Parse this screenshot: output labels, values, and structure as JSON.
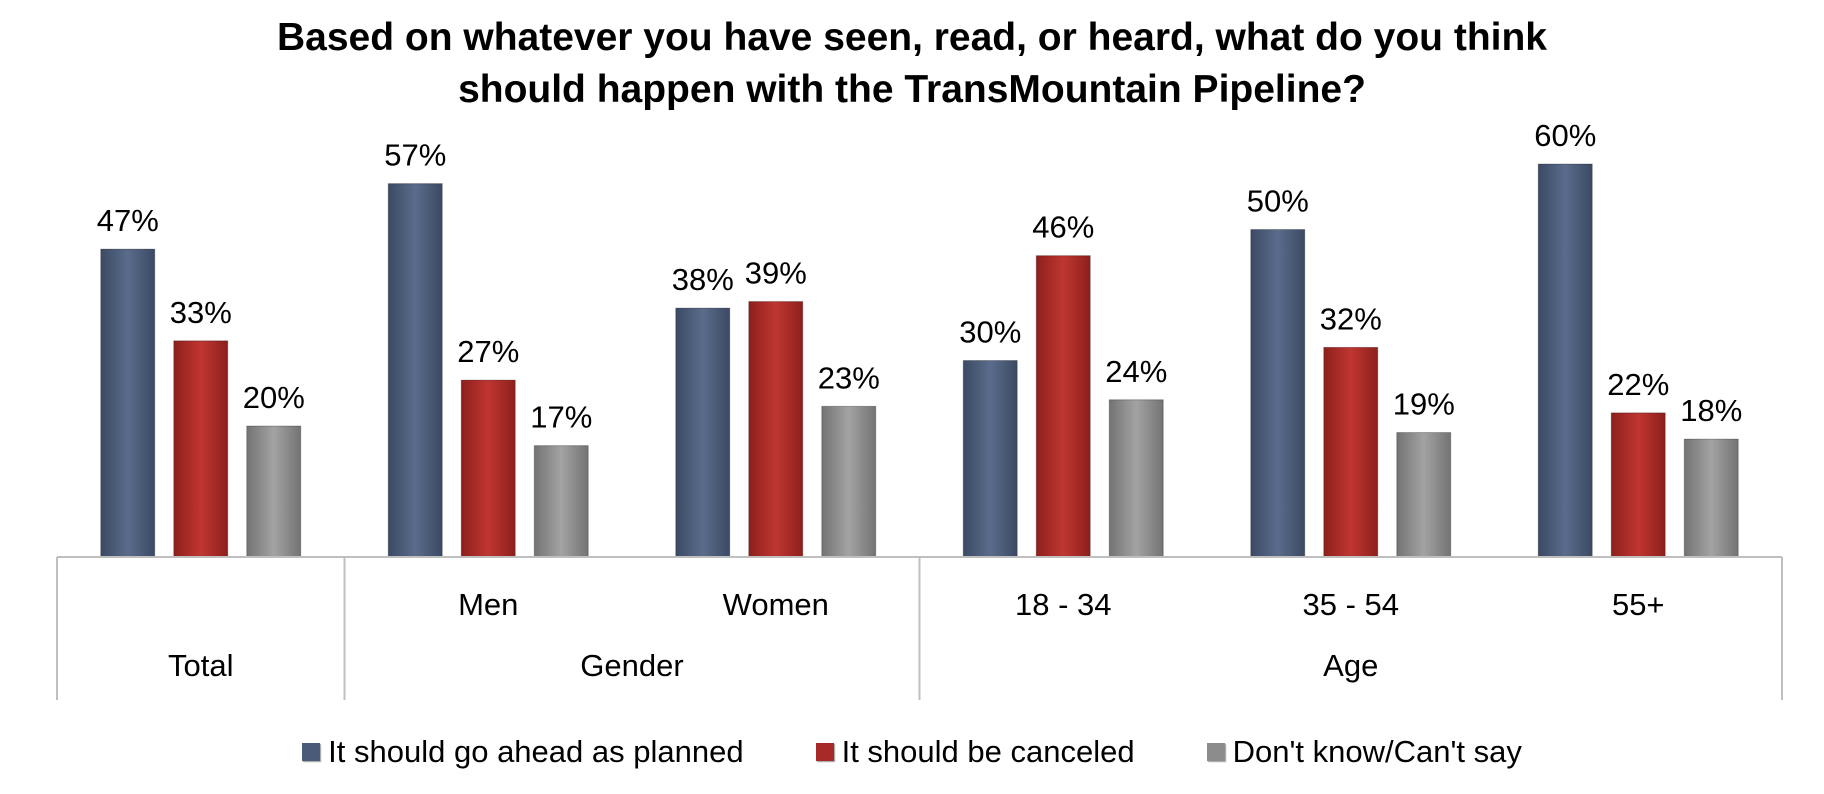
{
  "chart_data": {
    "type": "bar",
    "title_lines": [
      "Based on whatever you have seen, read, or heard, what do you think",
      "should happen with the TransMountain Pipeline?"
    ],
    "categories": [
      "Total",
      "Men",
      "Women",
      "18 - 34",
      "35 - 54",
      "55+"
    ],
    "groups": [
      {
        "label": "Total",
        "categories": [
          "Total"
        ]
      },
      {
        "label": "Gender",
        "categories": [
          "Men",
          "Women"
        ]
      },
      {
        "label": "Age",
        "categories": [
          "18 - 34",
          "35 - 54",
          "55+"
        ]
      }
    ],
    "series": [
      {
        "name": "It should go ahead as planned",
        "color": "#4a5b78",
        "values": [
          47,
          57,
          38,
          30,
          50,
          60
        ]
      },
      {
        "name": "It should be canceled",
        "color": "#a72a26",
        "values": [
          33,
          27,
          39,
          46,
          32,
          22
        ]
      },
      {
        "name": "Don't know/Can't say",
        "color": "#8c8c8c",
        "values": [
          20,
          17,
          23,
          24,
          19,
          18
        ]
      }
    ],
    "value_suffix": "%",
    "ylim": [
      0,
      60
    ],
    "grid": false,
    "legend_position": "bottom"
  }
}
